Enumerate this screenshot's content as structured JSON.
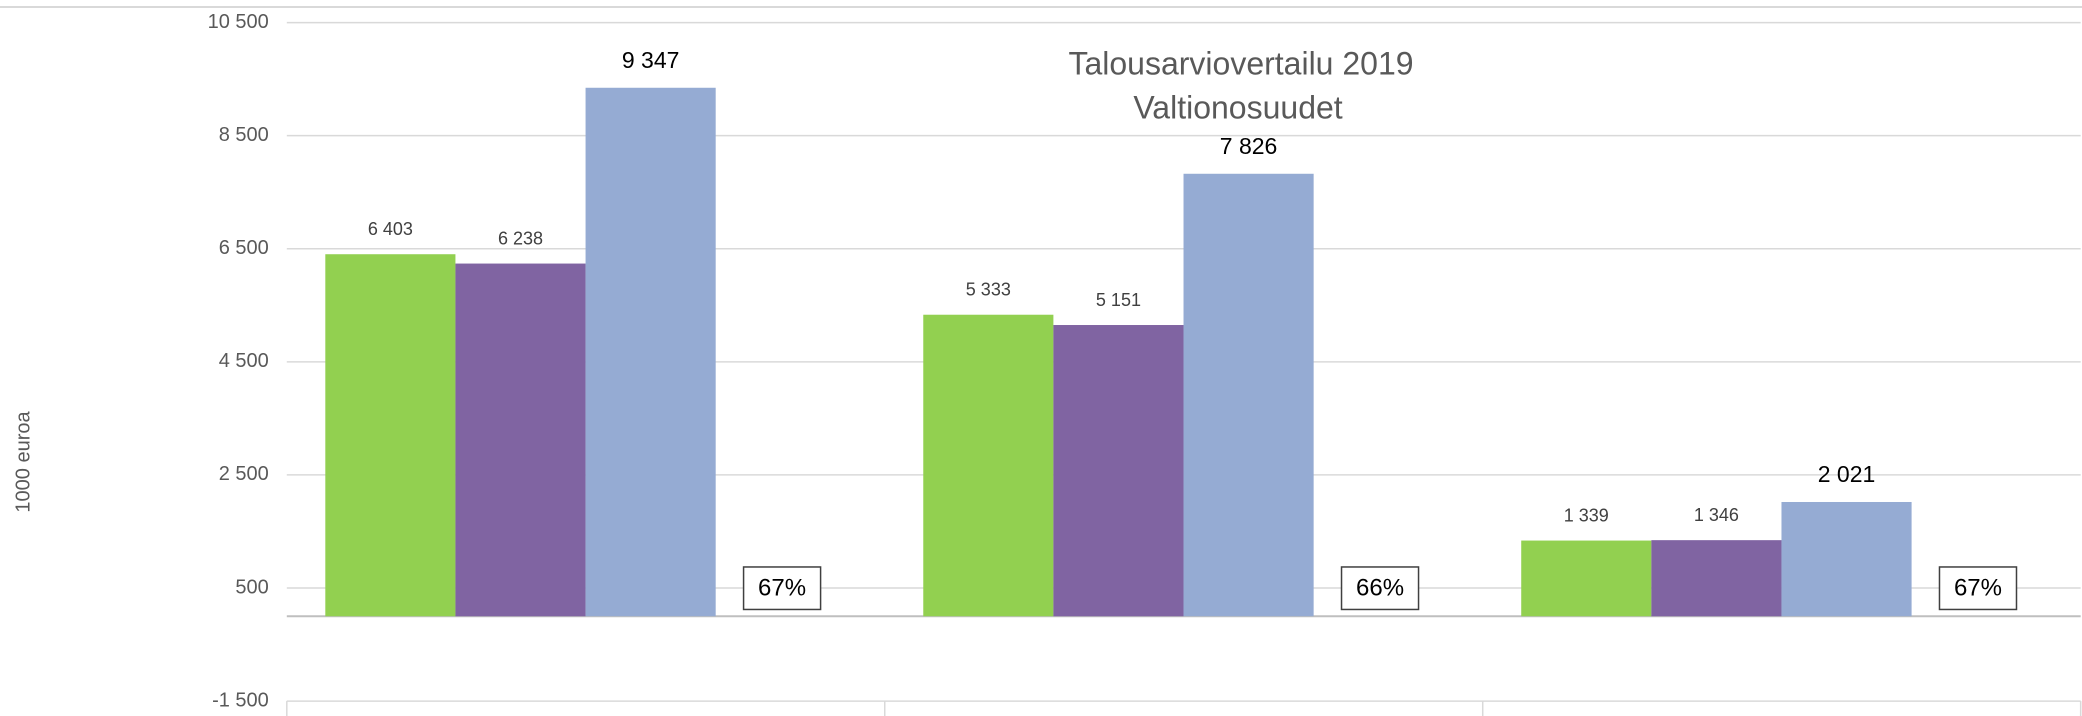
{
  "chart_data": {
    "type": "bar",
    "title": [
      "Talousarviovertailu 2019",
      "Valtionosuudet"
    ],
    "y_label": "1000 euroa",
    "categories": [
      null,
      null,
      null
    ],
    "series": [
      {
        "color": "#92d050",
        "values": [
          6403,
          5333,
          1339
        ],
        "value_labels": [
          "6 403",
          "5 333",
          "1 339"
        ]
      },
      {
        "color": "#8064a2",
        "values": [
          6238,
          5151,
          1346
        ],
        "value_labels": [
          "6 238",
          "5 151",
          "1 346"
        ]
      },
      {
        "color": "#95abd3",
        "values": [
          9347,
          7826,
          2021
        ],
        "value_labels": [
          "9 347",
          "7 826",
          "2 021"
        ]
      }
    ],
    "annotations": [
      "67%",
      "66%",
      "67%"
    ],
    "ylim": [
      -1500,
      10500
    ],
    "yticks": [
      {
        "value": -1500,
        "label": "-1 500"
      },
      500,
      {
        "value": 2500,
        "label": "2 500"
      },
      {
        "value": 4500,
        "label": "4 500"
      },
      {
        "value": 6500,
        "label": "6 500"
      },
      {
        "value": 8500,
        "label": "8 500"
      },
      {
        "value": 10500,
        "label": "10 500"
      }
    ],
    "grid": true
  }
}
